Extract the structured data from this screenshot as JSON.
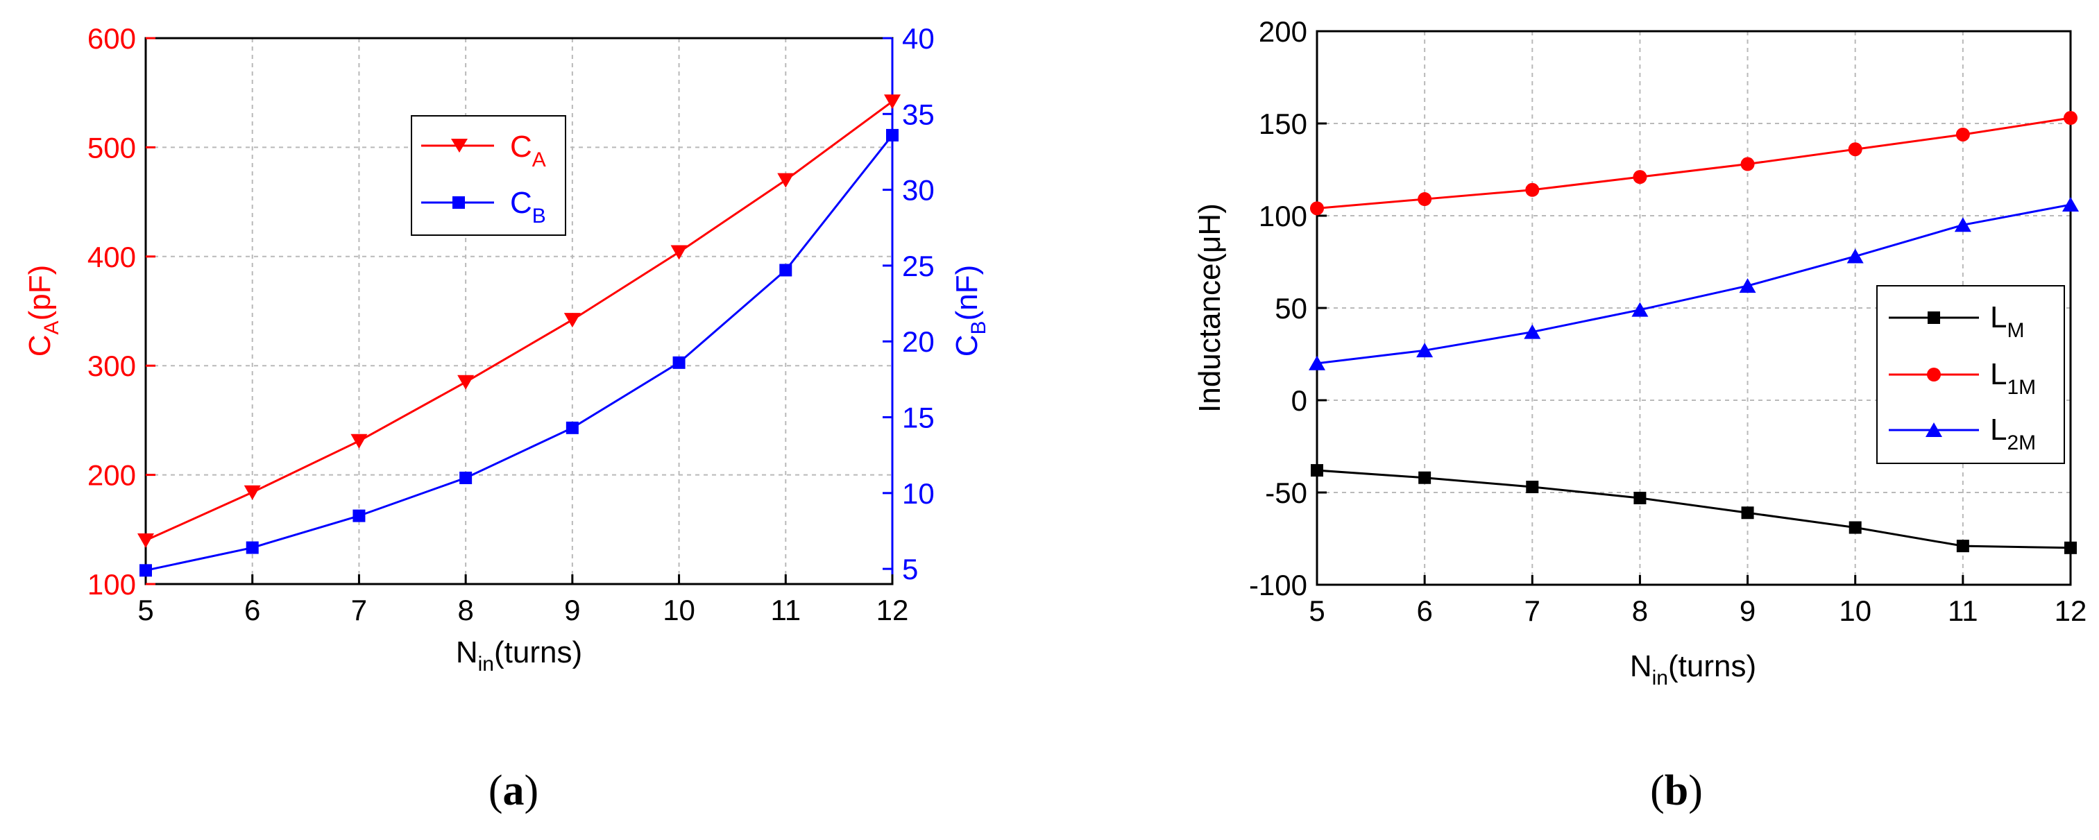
{
  "colors": {
    "red": "#ff0000",
    "blue": "#0000ff",
    "black": "#000000",
    "grid": "#b9b9b9"
  },
  "chart_data": [
    {
      "type": "line",
      "panel_caption": "a",
      "x": [
        5,
        6,
        7,
        8,
        9,
        10,
        11,
        12
      ],
      "xlim": [
        5,
        12
      ],
      "xticks": [
        "5",
        "6",
        "7",
        "8",
        "9",
        "10",
        "11",
        "12"
      ],
      "xlabel": {
        "main": "N",
        "sub": "in",
        "rest": "(turns)"
      },
      "ylim_left": [
        100,
        600
      ],
      "yticks_left": [
        "100",
        "200",
        "300",
        "400",
        "500",
        "600"
      ],
      "ylabel_left": {
        "main": "C",
        "sub": "A",
        "rest": "(pF)"
      },
      "ylim_right": [
        4,
        40
      ],
      "yticks_right": [
        "5",
        "10",
        "15",
        "20",
        "25",
        "30",
        "35",
        "40"
      ],
      "ylabel_right": {
        "main": "C",
        "sub": "B",
        "rest": "(nF)"
      },
      "grid": true,
      "legend_position": "top-center",
      "series": [
        {
          "main": "C",
          "sub": "A",
          "color": "#ff0000",
          "marker": "triangle-down",
          "axis": "left",
          "values": [
            140,
            184,
            231,
            285,
            342,
            404,
            470,
            542
          ]
        },
        {
          "main": "C",
          "sub": "B",
          "color": "#0000ff",
          "marker": "square",
          "axis": "right",
          "values": [
            4.9,
            6.4,
            8.5,
            11.0,
            14.3,
            18.6,
            24.7,
            33.6
          ]
        }
      ]
    },
    {
      "type": "line",
      "panel_caption": "b",
      "x": [
        5,
        6,
        7,
        8,
        9,
        10,
        11,
        12
      ],
      "xlim": [
        5,
        12
      ],
      "xticks": [
        "5",
        "6",
        "7",
        "8",
        "9",
        "10",
        "11",
        "12"
      ],
      "xlabel": {
        "main": "N",
        "sub": "in",
        "rest": "(turns)"
      },
      "ylim": [
        -100,
        200
      ],
      "yticks": [
        "-100",
        "-50",
        "0",
        "50",
        "100",
        "150",
        "200"
      ],
      "ylabel": "Inductance(μH)",
      "grid": true,
      "legend_position": "right",
      "series": [
        {
          "main": "L",
          "sub": "M",
          "color": "#000000",
          "marker": "square",
          "values": [
            -38,
            -42,
            -47,
            -53,
            -61,
            -69,
            -79,
            -80
          ]
        },
        {
          "main": "L",
          "sub": "1M",
          "color": "#ff0000",
          "marker": "circle",
          "values": [
            104,
            109,
            114,
            121,
            128,
            136,
            144,
            153
          ]
        },
        {
          "main": "L",
          "sub": "2M",
          "color": "#0000ff",
          "marker": "triangle-up",
          "values": [
            20,
            27,
            37,
            49,
            62,
            78,
            95,
            106
          ]
        }
      ]
    }
  ]
}
